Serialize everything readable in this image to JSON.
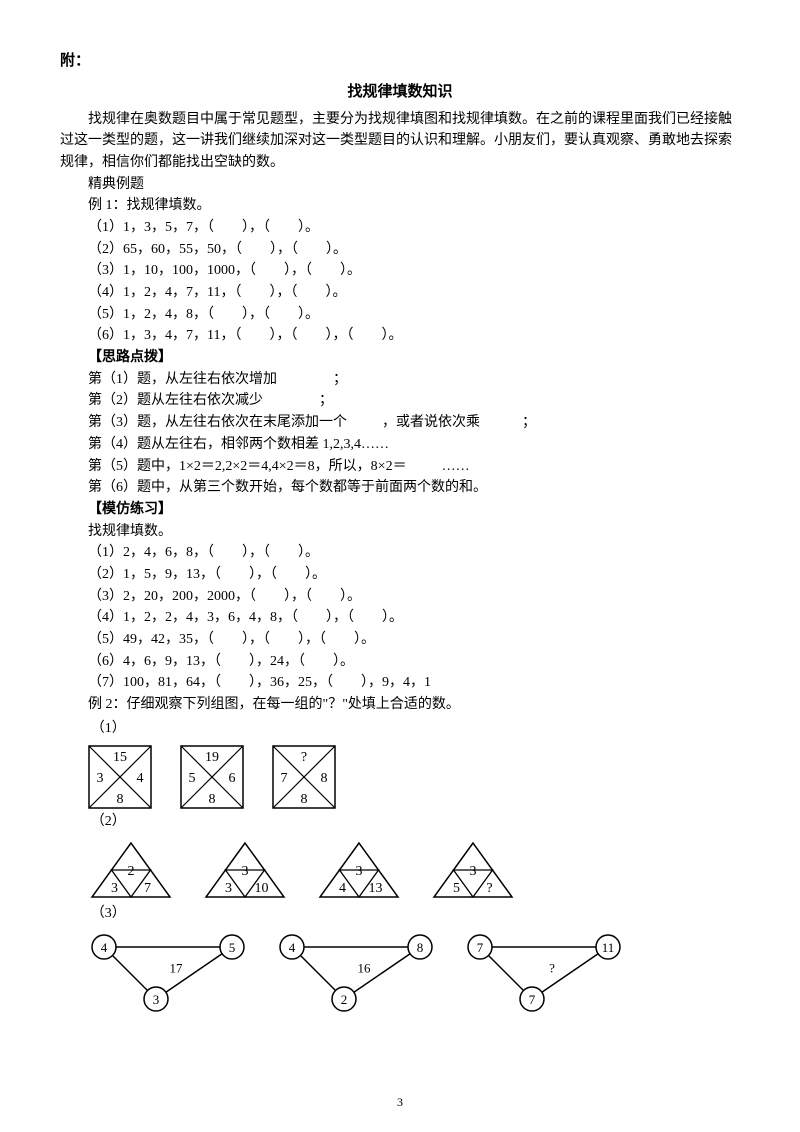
{
  "attach": "附：",
  "title": "找规律填数知识",
  "intro": "找规律在奥数题目中属于常见题型，主要分为找规律填图和找规律填数。在之前的课程里面我们已经接触过这一类型的题，这一讲我们继续加深对这一类型题目的认识和理解。小朋友们，要认真观察、勇敢地去探索规律，相信你们都能找出空缺的数。",
  "l_jd": "精典例题",
  "l_ex1": "例 1：找规律填数。",
  "ex1_1": "（1）1，3，5，7，（        ），（        ）。",
  "ex1_2": "（2）65，60，55，50，（        ），（        ）。",
  "ex1_3": "（3）1，10，100，1000，（        ），（        ）。",
  "ex1_4": "（4）1，2，4，7，11，（        ），（        ）。",
  "ex1_5": "（5）1，2，4，8，（        ），（        ）。",
  "ex1_6": "（6）1，3，4，7，11，（        ），（        ），（        ）。",
  "h_sl": "【思路点拨】",
  "sl_1": "第（1）题，从左往右依次增加                ；",
  "sl_2": "第（2）题从左往右依次减少                ；",
  "sl_3": "第（3）题，从左往右依次在末尾添加一个          ，或者说依次乘            ；",
  "sl_4": "第（4）题从左往右，相邻两个数相差 1,2,3,4……",
  "sl_5": "第（5）题中，1×2＝2,2×2＝4,4×2＝8，所以，8×2＝          ……",
  "sl_6": "第（6）题中，从第三个数开始，每个数都等于前面两个数的和。",
  "h_mf": "【模仿练习】",
  "mf_t": "找规律填数。",
  "mf_1": "（1）2，4，6，8，（        ），（        ）。",
  "mf_2": "（2）1，5，9，13，（        ），（        ）。",
  "mf_3": "（3）2，20，200，2000，（        ），（        ）。",
  "mf_4": "（4）1，2，2，4，3，6，4，8，（        ），（        ）。",
  "mf_5": "（5）49，42，35，（        ），（        ），（        ）。",
  "mf_6": "（6）4，6，9，13，（        ），24，（        ）。",
  "mf_7": "（7）100，81，64，（        ），36，25，（        ），9，4，1",
  "l_ex2": "例 2：仔细观察下列组图，在每一组的\"？\"处填上合适的数。",
  "g1_label": "（1）",
  "g2_label": "（2）",
  "g3_label": "（3）",
  "g1": {
    "squares": [
      {
        "t": "15",
        "l": "3",
        "r": "4",
        "b": "8"
      },
      {
        "t": "19",
        "l": "5",
        "r": "6",
        "b": "8"
      },
      {
        "t": "?",
        "l": "7",
        "r": "8",
        "b": "8"
      }
    ]
  },
  "g2": {
    "tris": [
      {
        "t": "2",
        "l": "3",
        "r": "7"
      },
      {
        "t": "3",
        "l": "3",
        "r": "10"
      },
      {
        "t": "3",
        "l": "4",
        "r": "13"
      },
      {
        "t": "3",
        "l": "5",
        "r": "?"
      }
    ]
  },
  "g3": {
    "graphs": [
      {
        "tl": "4",
        "tr": "5",
        "b": "3",
        "mid": "17"
      },
      {
        "tl": "4",
        "tr": "8",
        "b": "2",
        "mid": "16"
      },
      {
        "tl": "7",
        "tr": "11",
        "b": "7",
        "mid": "?"
      }
    ]
  },
  "page": "3",
  "colors": {
    "stroke": "#000000",
    "bg": "#ffffff"
  }
}
